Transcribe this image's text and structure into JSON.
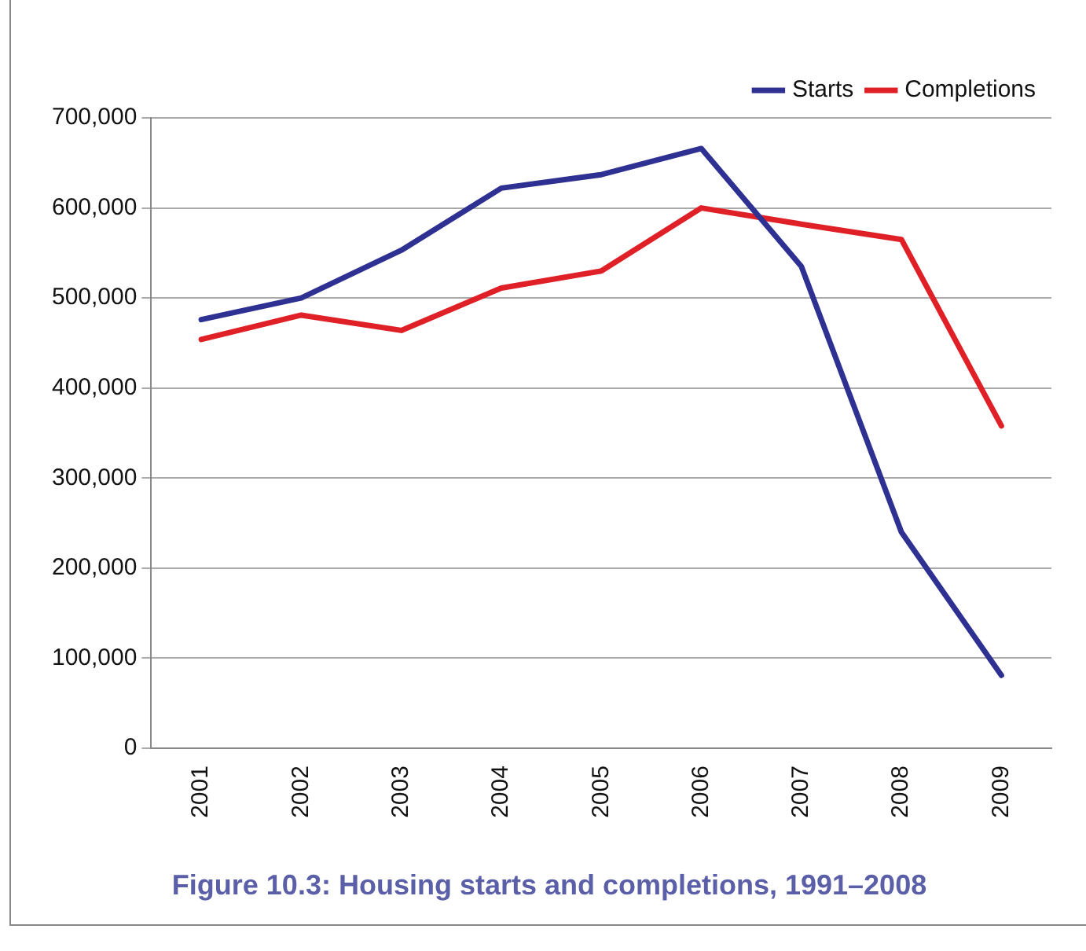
{
  "chart_data": {
    "type": "line",
    "title": "Figure 10.3: Housing starts and completions, 1991–2008",
    "categories": [
      "2001",
      "2002",
      "2003",
      "2004",
      "2005",
      "2006",
      "2007",
      "2008",
      "2009"
    ],
    "series": [
      {
        "name": "Starts",
        "color": "#2e3192",
        "values": [
          476000,
          500000,
          553000,
          622000,
          637000,
          666000,
          535000,
          240000,
          81000
        ]
      },
      {
        "name": "Completions",
        "color": "#e02027",
        "values": [
          454000,
          481000,
          464000,
          511000,
          530000,
          600000,
          582000,
          565000,
          358000
        ]
      }
    ],
    "ylim": [
      0,
      700000
    ],
    "yticks": [
      0,
      {
        "value": 100000,
        "label": "100,000"
      },
      {
        "value": 200000,
        "label": "200,000"
      },
      {
        "value": 300000,
        "label": "300,000"
      },
      {
        "value": 400000,
        "label": "400,000"
      },
      {
        "value": 500000,
        "label": "500,000"
      },
      {
        "value": 600000,
        "label": "600,000"
      },
      {
        "value": 700000,
        "label": "700,000"
      }
    ],
    "grid": "y",
    "legend": "top right",
    "marker": "none",
    "line_style": "solid"
  }
}
